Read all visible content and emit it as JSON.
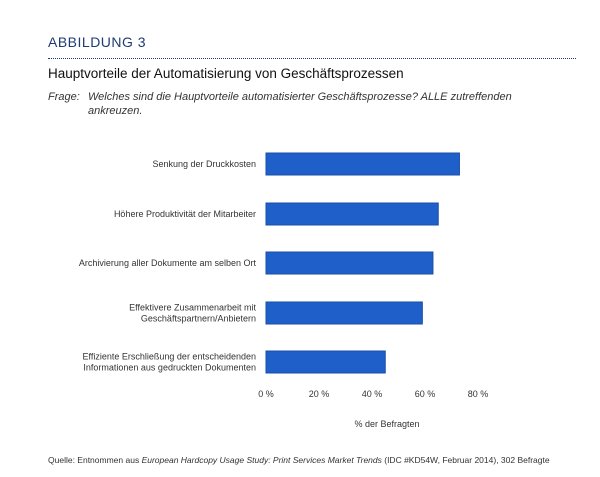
{
  "figure_label": "ABBILDUNG 3",
  "title": "Hauptvorteile der Automatisierung von Geschäftsprozessen",
  "question_label": "Frage:",
  "question_text": "Welches sind die Hauptvorteile automatisierter Geschäftsprozesse? ALLE zutreffenden ankreuzen.",
  "source": {
    "prefix": "Quelle: Entnommen aus ",
    "study": "European Hardcopy Usage Study: Print Services Market Trends",
    "suffix": " (IDC #KD54W, Februar 2014), 302 Befragte"
  },
  "colors": {
    "bar": "#1f5fc9",
    "bar_stroke": "#1a4fa8",
    "accent": "#1f3b73"
  },
  "chart_data": {
    "type": "bar",
    "orientation": "horizontal",
    "categories": [
      [
        "Senkung der Druckkosten"
      ],
      [
        "Höhere Produktivität der Mitarbeiter"
      ],
      [
        "Archivierung aller Dokumente am selben Ort"
      ],
      [
        "Effektivere Zusammenarbeit mit",
        "Geschäftspartnern/Anbietern"
      ],
      [
        "Effiziente Erschließung der entscheidenden",
        "Informationen aus gedruckten Dokumenten"
      ]
    ],
    "values": [
      73,
      65,
      63,
      59,
      45
    ],
    "xticks": [
      "0 %",
      "20 %",
      "40 %",
      "60 %",
      "80 %"
    ],
    "xtick_values": [
      0,
      20,
      40,
      60,
      80
    ],
    "xlim": [
      0,
      80
    ],
    "xlabel": "% der Befragten",
    "ylabel": "",
    "grid": false,
    "legend": "none"
  }
}
